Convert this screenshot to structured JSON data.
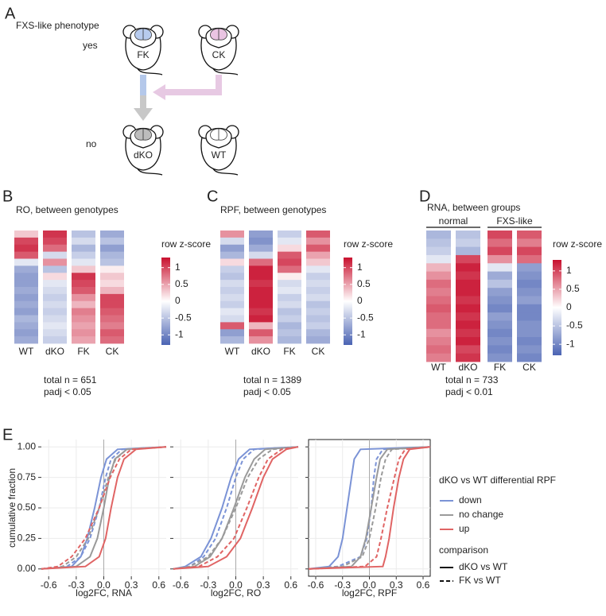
{
  "panel_a": {
    "label": "A",
    "phenotype_label": "FXS-like phenotype",
    "rows": [
      "yes",
      "no"
    ],
    "mice": [
      "FK",
      "CK",
      "dKO",
      "WT"
    ]
  },
  "heatmaps": [
    {
      "label": "B",
      "title": "RO, between genotypes",
      "columns": [
        "WT",
        "dKO",
        "FK",
        "CK"
      ],
      "values": [
        [
          0.3,
          1.0,
          1.1,
          0.9,
          -0.2,
          -0.7,
          -0.8,
          -0.8,
          -0.7,
          -0.8,
          -0.7,
          -0.8,
          -0.6,
          -0.7,
          -0.8,
          -0.7
        ],
        [
          1.1,
          1.0,
          0.8,
          -0.3,
          0.6,
          -0.5,
          0.2,
          -0.2,
          -0.3,
          -0.4,
          -0.3,
          -0.4,
          -0.3,
          -0.2,
          -0.3,
          -0.4
        ],
        [
          -0.5,
          -0.3,
          -0.6,
          -0.4,
          -0.2,
          0.3,
          1.1,
          1.0,
          0.9,
          0.6,
          0.4,
          0.7,
          0.6,
          0.5,
          0.6,
          0.5
        ],
        [
          -0.7,
          -0.5,
          -0.8,
          -0.6,
          -0.5,
          0.1,
          0.3,
          0.2,
          0.4,
          1.0,
          1.0,
          0.9,
          0.8,
          0.7,
          0.9,
          0.8
        ]
      ],
      "scale_title": "row z-score",
      "zlim": [
        -1.3,
        1.3
      ],
      "zticks": [
        1,
        0.5,
        0,
        -0.5,
        -1
      ],
      "total": "total n = 651",
      "padj": "padj < 0.05"
    },
    {
      "label": "C",
      "title": "RPF, between genotypes",
      "columns": [
        "WT",
        "dKO",
        "FK",
        "CK"
      ],
      "values": [
        [
          0.6,
          -0.3,
          -0.8,
          -0.6,
          0.2,
          -0.4,
          -0.5,
          -0.3,
          -0.4,
          -0.3,
          -0.4,
          -0.2,
          -0.3,
          0.9,
          -0.8,
          -0.6
        ],
        [
          -0.8,
          -0.9,
          -0.7,
          -0.3,
          0.8,
          1.2,
          1.2,
          1.1,
          1.2,
          1.2,
          1.2,
          1.1,
          1.2,
          0.4,
          0.9,
          0.6
        ],
        [
          -0.4,
          -0.2,
          0.2,
          0.9,
          1.0,
          0.8,
          0.1,
          -0.3,
          -0.2,
          -0.4,
          -0.3,
          -0.5,
          -0.4,
          -0.6,
          -0.5,
          -0.6
        ],
        [
          0.9,
          0.6,
          0.9,
          0.5,
          0.3,
          -0.2,
          -0.4,
          -0.3,
          -0.4,
          -0.3,
          -0.5,
          -0.4,
          -0.5,
          -0.4,
          -0.6,
          -0.7
        ]
      ],
      "scale_title": "row z-score",
      "zlim": [
        -1.3,
        1.3
      ],
      "zticks": [
        1,
        0.5,
        0,
        -0.5,
        -1
      ],
      "total": "total n = 1389",
      "padj": "padj < 0.05"
    },
    {
      "label": "D",
      "title": "RNA, between groups",
      "groups": [
        "normal",
        "FXS-like"
      ],
      "columns": [
        "WT",
        "dKO",
        "FK",
        "CK"
      ],
      "values": [
        [
          -0.6,
          -0.5,
          -0.4,
          -0.2,
          0.4,
          0.6,
          0.8,
          0.7,
          0.8,
          0.9,
          0.8,
          0.8,
          0.6,
          0.7,
          0.8,
          0.7
        ],
        [
          -0.5,
          -0.4,
          -0.6,
          1.0,
          1.2,
          1.1,
          1.2,
          1.2,
          1.1,
          1.2,
          1.1,
          1.2,
          1.1,
          1.2,
          1.0,
          1.1
        ],
        [
          1.0,
          0.8,
          1.0,
          0.6,
          -0.2,
          -0.7,
          -0.5,
          -0.8,
          -0.9,
          -1.0,
          -0.8,
          -0.9,
          -1.0,
          -0.9,
          -1.0,
          -0.9
        ],
        [
          0.9,
          0.7,
          1.0,
          0.8,
          -0.8,
          -0.9,
          -1.0,
          -0.9,
          -0.8,
          -1.0,
          -1.0,
          -0.9,
          -0.9,
          -1.0,
          -0.9,
          -1.0
        ]
      ],
      "scale_title": "row z-score",
      "zlim": [
        -1.3,
        1.3
      ],
      "zticks": [
        1,
        0.5,
        0,
        -0.5,
        -1
      ],
      "total": "total n = 733",
      "padj": "padj < 0.01"
    }
  ],
  "heat_colors": {
    "low": "#4a63b3",
    "mid": "#ffffff",
    "high": "#c8102e"
  },
  "panel_e_label": "E",
  "y_label": "cumulative fraction",
  "chart_data": [
    {
      "type": "line",
      "x_label": "log2FC, RNA",
      "xlim": [
        -0.68,
        0.68
      ],
      "ylim": [
        -0.06,
        1.06
      ],
      "xticks": [
        -0.6,
        -0.3,
        {
          "value": 0,
          "label": "0.0"
        },
        0.3,
        0.6
      ],
      "yticks": [
        {
          "value": 0,
          "label": "0.00"
        },
        {
          "value": 0.25,
          "label": "0.25"
        },
        {
          "value": 0.5,
          "label": "0.50"
        },
        {
          "value": 0.75,
          "label": "0.75"
        },
        {
          "value": 1,
          "label": "1.00"
        }
      ],
      "grid": true,
      "frame": false,
      "series": [
        {
          "color": "#7b93d6",
          "linestyle": "solid",
          "x": [
            -0.68,
            -0.35,
            -0.25,
            -0.18,
            -0.1,
            -0.03,
            0.03,
            0.15,
            0.68
          ],
          "values": [
            0,
            0.02,
            0.1,
            0.25,
            0.5,
            0.75,
            0.9,
            0.98,
            1
          ]
        },
        {
          "color": "#7b93d6",
          "linestyle": "dashed",
          "x": [
            -0.68,
            -0.4,
            -0.25,
            -0.15,
            -0.05,
            0.02,
            0.08,
            0.2,
            0.68
          ],
          "values": [
            0,
            0.02,
            0.1,
            0.25,
            0.5,
            0.75,
            0.9,
            0.98,
            1
          ]
        },
        {
          "color": "#9a9a9a",
          "linestyle": "solid",
          "x": [
            -0.68,
            -0.3,
            -0.15,
            -0.07,
            0,
            0.06,
            0.12,
            0.25,
            0.68
          ],
          "values": [
            0,
            0.02,
            0.1,
            0.25,
            0.5,
            0.75,
            0.9,
            0.98,
            1
          ]
        },
        {
          "color": "#9a9a9a",
          "linestyle": "dashed",
          "x": [
            -0.68,
            -0.45,
            -0.3,
            -0.17,
            -0.05,
            0.05,
            0.13,
            0.25,
            0.68
          ],
          "values": [
            0,
            0.02,
            0.1,
            0.25,
            0.5,
            0.75,
            0.9,
            0.98,
            1
          ]
        },
        {
          "color": "#e06464",
          "linestyle": "solid",
          "x": [
            -0.68,
            -0.2,
            -0.05,
            0.02,
            0.08,
            0.15,
            0.22,
            0.35,
            0.68
          ],
          "values": [
            0,
            0.02,
            0.1,
            0.25,
            0.5,
            0.75,
            0.9,
            0.98,
            1
          ]
        },
        {
          "color": "#e06464",
          "linestyle": "dashed",
          "x": [
            -0.68,
            -0.5,
            -0.35,
            -0.2,
            -0.05,
            0.07,
            0.17,
            0.3,
            0.68
          ],
          "values": [
            0,
            0.02,
            0.1,
            0.25,
            0.5,
            0.75,
            0.9,
            0.98,
            1
          ]
        }
      ]
    },
    {
      "type": "line",
      "x_label": "log2FC, RO",
      "xlim": [
        -0.68,
        0.68
      ],
      "ylim": [
        -0.06,
        1.06
      ],
      "xticks": [
        -0.6,
        -0.3,
        {
          "value": 0,
          "label": "0.0"
        },
        0.3,
        0.6
      ],
      "yticks": [
        0,
        0.25,
        0.5,
        0.75,
        1
      ],
      "grid": true,
      "frame": false,
      "series": [
        {
          "color": "#7b93d6",
          "linestyle": "solid",
          "x": [
            -0.68,
            -0.55,
            -0.38,
            -0.27,
            -0.15,
            -0.05,
            0.03,
            0.15,
            0.68
          ],
          "values": [
            0,
            0.02,
            0.1,
            0.25,
            0.5,
            0.75,
            0.9,
            0.98,
            1
          ]
        },
        {
          "color": "#7b93d6",
          "linestyle": "dashed",
          "x": [
            -0.68,
            -0.5,
            -0.35,
            -0.22,
            -0.1,
            0,
            0.08,
            0.2,
            0.68
          ],
          "values": [
            0,
            0.02,
            0.1,
            0.25,
            0.5,
            0.75,
            0.9,
            0.98,
            1
          ]
        },
        {
          "color": "#9a9a9a",
          "linestyle": "solid",
          "x": [
            -0.68,
            -0.45,
            -0.28,
            -0.15,
            -0.02,
            0.1,
            0.2,
            0.32,
            0.68
          ],
          "values": [
            0,
            0.02,
            0.1,
            0.25,
            0.5,
            0.75,
            0.9,
            0.98,
            1
          ]
        },
        {
          "color": "#9a9a9a",
          "linestyle": "dashed",
          "x": [
            -0.68,
            -0.5,
            -0.3,
            -0.15,
            0,
            0.13,
            0.25,
            0.4,
            0.68
          ],
          "values": [
            0,
            0.02,
            0.1,
            0.25,
            0.5,
            0.75,
            0.9,
            0.98,
            1
          ]
        },
        {
          "color": "#e06464",
          "linestyle": "solid",
          "x": [
            -0.68,
            -0.3,
            -0.1,
            0.05,
            0.18,
            0.3,
            0.4,
            0.55,
            0.68
          ],
          "values": [
            0,
            0.02,
            0.1,
            0.25,
            0.5,
            0.75,
            0.9,
            0.98,
            1
          ]
        },
        {
          "color": "#e06464",
          "linestyle": "dashed",
          "x": [
            -0.68,
            -0.4,
            -0.2,
            -0.02,
            0.12,
            0.25,
            0.35,
            0.5,
            0.68
          ],
          "values": [
            0,
            0.02,
            0.1,
            0.25,
            0.5,
            0.75,
            0.9,
            0.98,
            1
          ]
        }
      ]
    },
    {
      "type": "line",
      "x_label": "log2FC, RPF",
      "xlim": [
        -0.68,
        0.68
      ],
      "ylim": [
        -0.06,
        1.06
      ],
      "xticks": [
        -0.6,
        -0.3,
        {
          "value": 0,
          "label": "0.0"
        },
        0.3,
        0.6
      ],
      "yticks": [
        0,
        0.25,
        0.5,
        0.75,
        1
      ],
      "grid": true,
      "frame": true,
      "series": [
        {
          "color": "#7b93d6",
          "linestyle": "solid",
          "x": [
            -0.68,
            -0.45,
            -0.35,
            -0.3,
            -0.25,
            -0.2,
            -0.17,
            -0.1,
            0.68
          ],
          "values": [
            0,
            0.02,
            0.1,
            0.25,
            0.5,
            0.75,
            0.9,
            0.98,
            1
          ]
        },
        {
          "color": "#7b93d6",
          "linestyle": "dashed",
          "x": [
            -0.68,
            -0.35,
            -0.1,
            -0.03,
            0.02,
            0.05,
            0.08,
            0.15,
            0.68
          ],
          "values": [
            0,
            0.02,
            0.1,
            0.25,
            0.5,
            0.75,
            0.9,
            0.98,
            1
          ]
        },
        {
          "color": "#9a9a9a",
          "linestyle": "solid",
          "x": [
            -0.68,
            -0.2,
            -0.1,
            -0.04,
            0.02,
            0.08,
            0.12,
            0.2,
            0.68
          ],
          "values": [
            0,
            0.02,
            0.1,
            0.25,
            0.5,
            0.75,
            0.9,
            0.98,
            1
          ]
        },
        {
          "color": "#9a9a9a",
          "linestyle": "dashed",
          "x": [
            -0.68,
            -0.3,
            -0.08,
            0,
            0.07,
            0.13,
            0.18,
            0.25,
            0.68
          ],
          "values": [
            0,
            0.02,
            0.1,
            0.25,
            0.5,
            0.75,
            0.9,
            0.98,
            1
          ]
        },
        {
          "color": "#e06464",
          "linestyle": "solid",
          "x": [
            -0.68,
            0.15,
            0.18,
            0.22,
            0.27,
            0.33,
            0.38,
            0.45,
            0.68
          ],
          "values": [
            0,
            0.02,
            0.1,
            0.25,
            0.5,
            0.75,
            0.9,
            0.98,
            1
          ]
        },
        {
          "color": "#e06464",
          "linestyle": "dashed",
          "x": [
            -0.68,
            -0.05,
            0.08,
            0.13,
            0.2,
            0.28,
            0.33,
            0.4,
            0.68
          ],
          "values": [
            0,
            0.02,
            0.1,
            0.25,
            0.5,
            0.75,
            0.9,
            0.98,
            1
          ]
        }
      ]
    }
  ],
  "legend": {
    "title": "dKO vs WT differential RPF",
    "entries": [
      {
        "name": "down",
        "color": "#7b93d6"
      },
      {
        "name": "no change",
        "color": "#9a9a9a"
      },
      {
        "name": "up",
        "color": "#e06464"
      }
    ]
  },
  "linetype_legend": {
    "title": "comparison",
    "entries": [
      {
        "name": "dKO vs WT",
        "linestyle": "solid"
      },
      {
        "name": "FK vs WT",
        "linestyle": "dashed"
      }
    ]
  }
}
